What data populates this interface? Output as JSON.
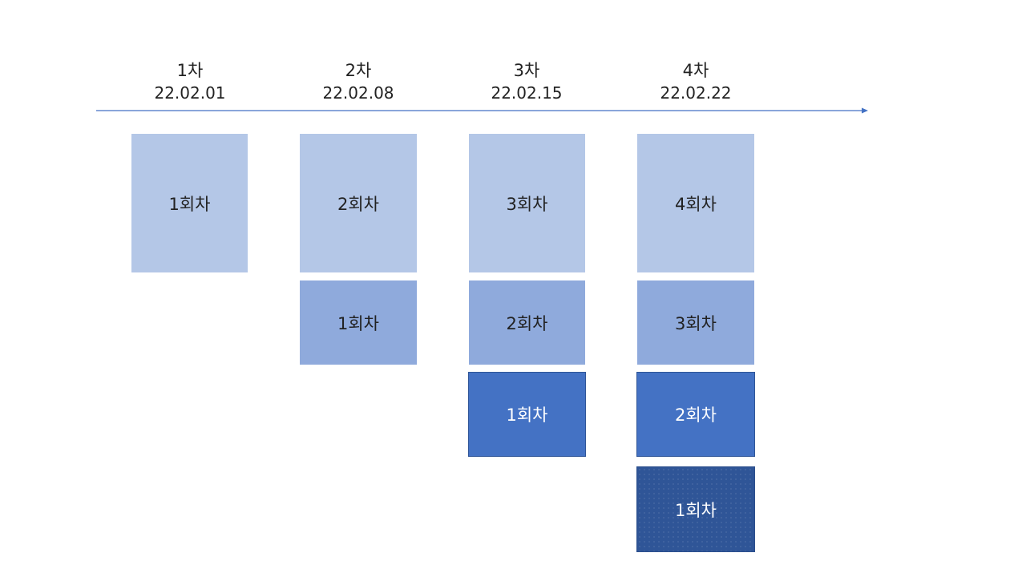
{
  "timeline": {
    "columns": [
      {
        "round": "1차",
        "date": "22.02.01"
      },
      {
        "round": "2차",
        "date": "22.02.08"
      },
      {
        "round": "3차",
        "date": "22.02.15"
      },
      {
        "round": "4차",
        "date": "22.02.22"
      }
    ],
    "arrow_color": "#4472c4"
  },
  "grid": {
    "col1": {
      "row1": "1회차"
    },
    "col2": {
      "row1": "2회차",
      "row2": "1회차"
    },
    "col3": {
      "row1": "3회차",
      "row2": "2회차",
      "row3": "1회차"
    },
    "col4": {
      "row1": "4회차",
      "row2": "3회차",
      "row3": "2회차",
      "row4": "1회차"
    }
  },
  "colors": {
    "light": "#b4c7e7",
    "mid": "#8faadc",
    "strong": "#4472c4",
    "dark": "#2f5597"
  }
}
